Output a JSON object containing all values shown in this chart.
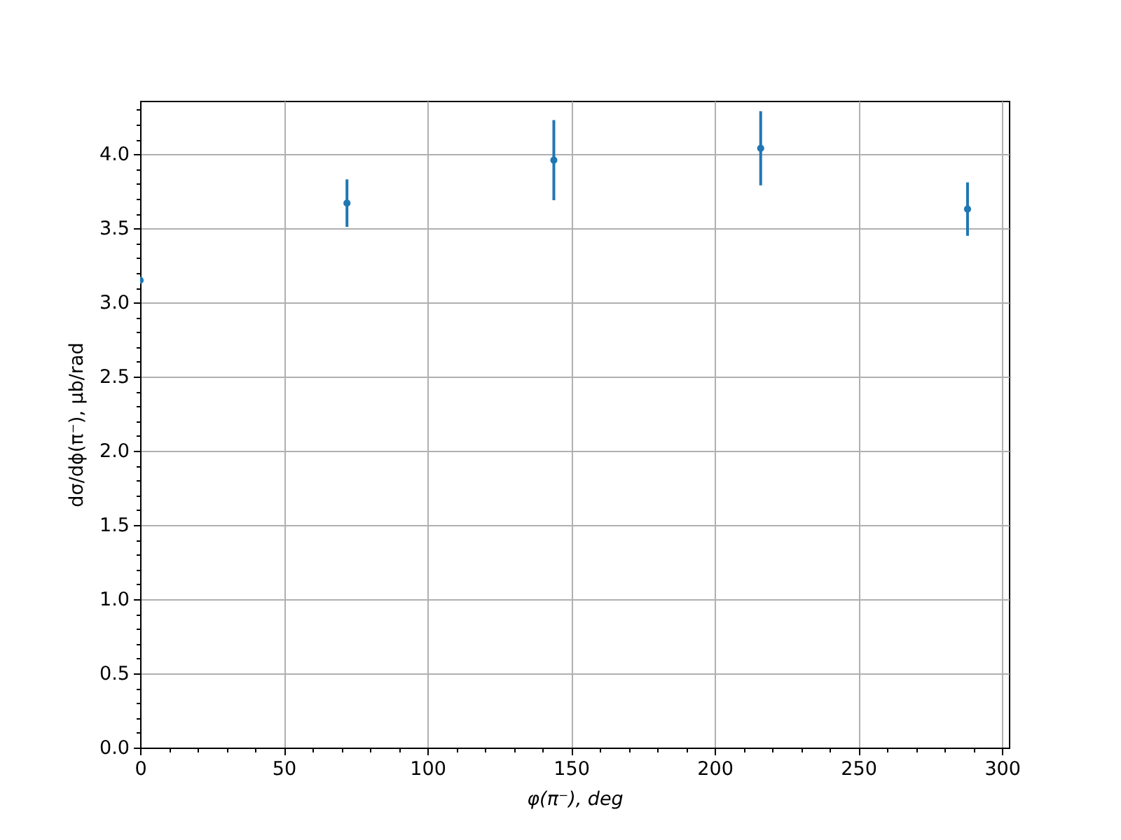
{
  "chart_data": {
    "type": "scatter",
    "xlabel": "φ(π⁻), deg",
    "ylabel": "dσ/dϕ(π⁻), μb/rad",
    "x": [
      0,
      72,
      144,
      216,
      288
    ],
    "values": [
      3.15,
      3.67,
      3.96,
      4.04,
      3.63
    ],
    "errors": [
      null,
      0.16,
      0.27,
      0.25,
      0.18
    ],
    "color": "#1f77b4",
    "marker": "circle",
    "xlim": [
      0,
      302.4
    ],
    "ylim": [
      0,
      4.36
    ],
    "xticks": [
      0,
      {
        "value": 10,
        "label": null
      },
      {
        "value": 20,
        "label": null
      },
      {
        "value": 30,
        "label": null
      },
      {
        "value": 40,
        "label": null
      },
      50,
      {
        "value": 60,
        "label": null
      },
      {
        "value": 70,
        "label": null
      },
      {
        "value": 80,
        "label": null
      },
      {
        "value": 90,
        "label": null
      },
      100,
      {
        "value": 110,
        "label": null
      },
      {
        "value": 120,
        "label": null
      },
      {
        "value": 130,
        "label": null
      },
      {
        "value": 140,
        "label": null
      },
      150,
      {
        "value": 160,
        "label": null
      },
      {
        "value": 170,
        "label": null
      },
      {
        "value": 180,
        "label": null
      },
      {
        "value": 190,
        "label": null
      },
      200,
      {
        "value": 210,
        "label": null
      },
      {
        "value": 220,
        "label": null
      },
      {
        "value": 230,
        "label": null
      },
      {
        "value": 240,
        "label": null
      },
      250,
      {
        "value": 260,
        "label": null
      },
      {
        "value": 270,
        "label": null
      },
      {
        "value": 280,
        "label": null
      },
      {
        "value": 290,
        "label": null
      },
      300
    ],
    "yticks": [
      {
        "value": 0,
        "label": "0.0"
      },
      {
        "value": 0.1,
        "label": null
      },
      {
        "value": 0.2,
        "label": null
      },
      {
        "value": 0.3,
        "label": null
      },
      {
        "value": 0.4,
        "label": null
      },
      0.5,
      {
        "value": 0.6,
        "label": null
      },
      {
        "value": 0.7,
        "label": null
      },
      {
        "value": 0.8,
        "label": null
      },
      {
        "value": 0.9,
        "label": null
      },
      {
        "value": 1,
        "label": "1.0"
      },
      {
        "value": 1.1,
        "label": null
      },
      {
        "value": 1.2,
        "label": null
      },
      {
        "value": 1.3,
        "label": null
      },
      {
        "value": 1.4,
        "label": null
      },
      1.5,
      {
        "value": 1.6,
        "label": null
      },
      {
        "value": 1.7,
        "label": null
      },
      {
        "value": 1.8,
        "label": null
      },
      {
        "value": 1.9,
        "label": null
      },
      {
        "value": 2,
        "label": "2.0"
      },
      {
        "value": 2.1,
        "label": null
      },
      {
        "value": 2.2,
        "label": null
      },
      {
        "value": 2.3,
        "label": null
      },
      {
        "value": 2.4,
        "label": null
      },
      2.5,
      {
        "value": 2.6,
        "label": null
      },
      {
        "value": 2.7,
        "label": null
      },
      {
        "value": 2.8,
        "label": null
      },
      {
        "value": 2.9,
        "label": null
      },
      {
        "value": 3,
        "label": "3.0"
      },
      {
        "value": 3.1,
        "label": null
      },
      {
        "value": 3.2,
        "label": null
      },
      {
        "value": 3.3,
        "label": null
      },
      {
        "value": 3.4,
        "label": null
      },
      3.5,
      {
        "value": 3.6,
        "label": null
      },
      {
        "value": 3.7,
        "label": null
      },
      {
        "value": 3.8,
        "label": null
      },
      {
        "value": 3.9,
        "label": null
      },
      {
        "value": 4,
        "label": "4.0"
      },
      {
        "value": 4.1,
        "label": null
      },
      {
        "value": 4.2,
        "label": null
      },
      {
        "value": 4.3,
        "label": null
      }
    ],
    "grid": true
  }
}
